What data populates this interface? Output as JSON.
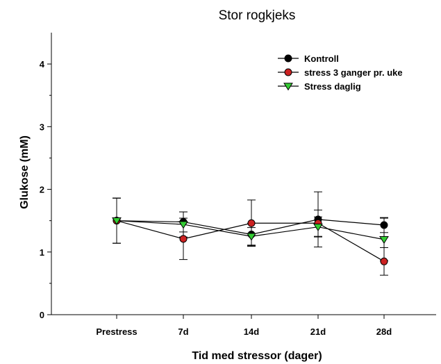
{
  "chart_data": {
    "type": "line",
    "title": "Stor rogkjeks",
    "xlabel": "Tid med stressor (dager)",
    "ylabel": "Glukose (mM)",
    "categories": [
      "Prestress",
      "7d",
      "14d",
      "21d",
      "28d"
    ],
    "ylim": [
      0,
      4.5
    ],
    "yticks": [
      0,
      1,
      2,
      3,
      4
    ],
    "grid": false,
    "legend_position": "top-right",
    "series": [
      {
        "name": "Kontroll",
        "marker": "circle",
        "color": "#000000",
        "values": [
          1.5,
          1.48,
          1.28,
          1.52,
          1.43
        ],
        "errors": [
          0.36,
          0.16,
          0.18,
          0.44,
          0.12
        ]
      },
      {
        "name": "stress 3 ganger pr. uke",
        "marker": "circle",
        "color": "#cc2222",
        "values": [
          1.5,
          1.21,
          1.46,
          1.46,
          0.85
        ],
        "errors": [
          0.36,
          0.33,
          0.37,
          0.21,
          0.22
        ]
      },
      {
        "name": "Stress daglig",
        "marker": "triangle-down",
        "color": "#33cc33",
        "values": [
          1.5,
          1.44,
          1.25,
          1.4,
          1.2
        ],
        "errors": [
          0.36,
          0.2,
          0.14,
          0.16,
          0.34
        ]
      }
    ]
  }
}
